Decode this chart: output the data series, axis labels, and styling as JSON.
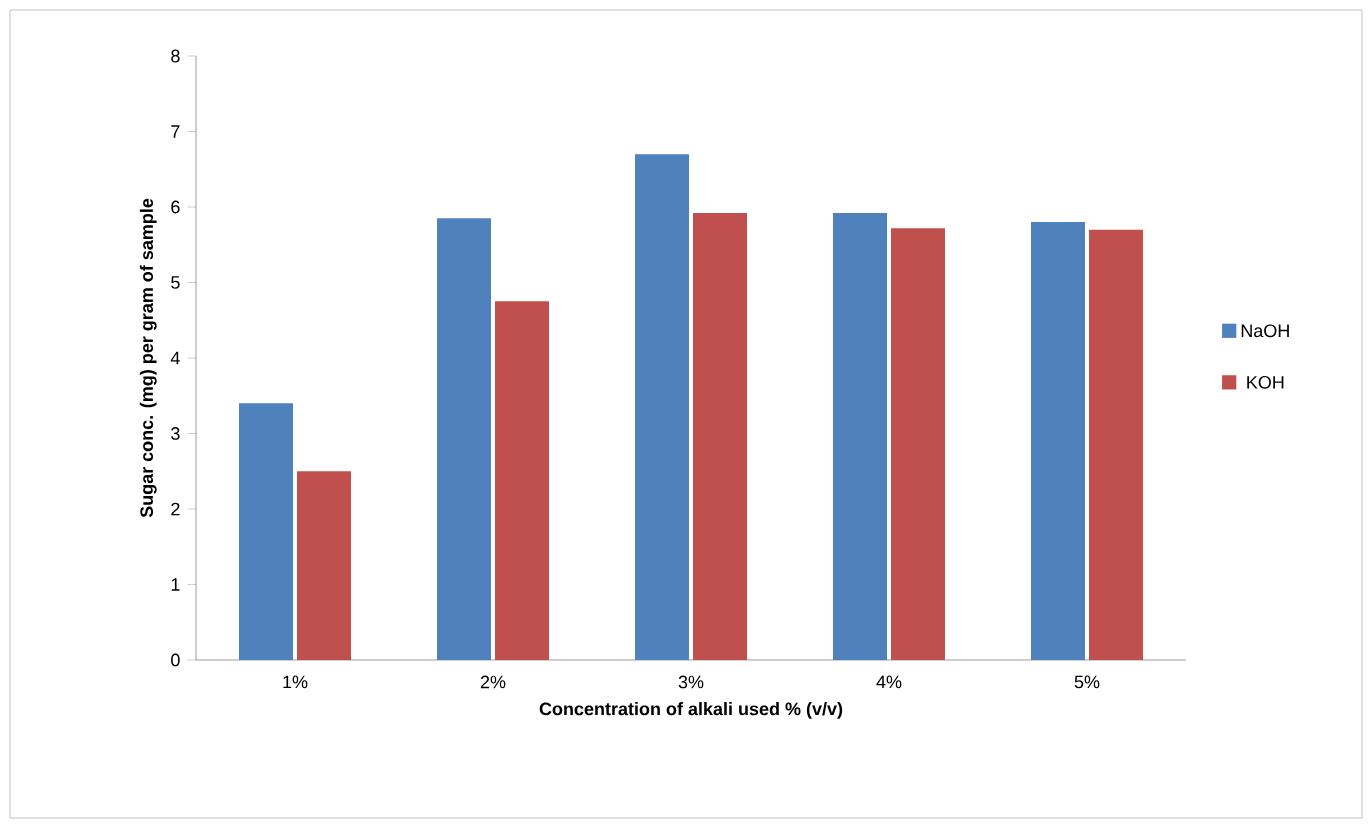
{
  "chart_data": {
    "type": "bar",
    "xlabel": "Concentration of alkali used % (v/v)",
    "ylabel": "Sugar conc. (mg) per gram of sample",
    "categories": [
      "1%",
      "2%",
      "3%",
      "4%",
      "5%"
    ],
    "series": [
      {
        "name": "NaOH",
        "color": "#4f81bd",
        "values": [
          3.4,
          5.85,
          6.7,
          5.92,
          5.8
        ]
      },
      {
        "name": "KOH",
        "color": "#c0504d",
        "values": [
          2.5,
          4.75,
          5.92,
          5.72,
          5.7
        ]
      }
    ],
    "ylim": [
      0,
      8
    ],
    "yticks": [
      0,
      1,
      2,
      3,
      4,
      5,
      6,
      7,
      8
    ],
    "grid": false,
    "legend": "right"
  }
}
